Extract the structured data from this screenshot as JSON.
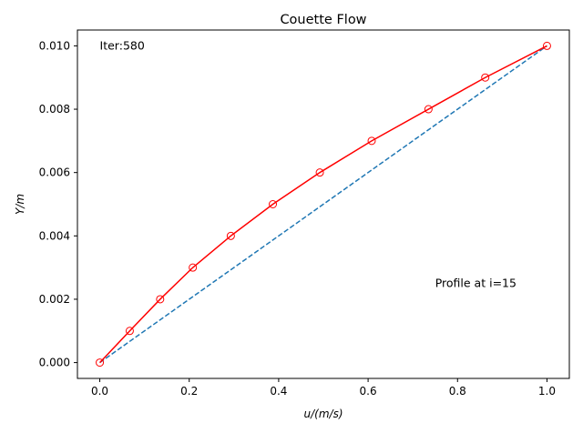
{
  "chart_data": {
    "type": "line",
    "title": "Couette Flow",
    "xlabel": "u/(m/s)",
    "ylabel": "Y/m",
    "xlim": [
      -0.05,
      1.05
    ],
    "ylim": [
      -0.0005,
      0.0105
    ],
    "x_ticks": [
      0.0,
      0.2,
      0.4,
      0.6,
      0.8,
      1.0
    ],
    "x_tick_labels": [
      "0.0",
      "0.2",
      "0.4",
      "0.6",
      "0.8",
      "1.0"
    ],
    "y_ticks": [
      0.0,
      0.002,
      0.004,
      0.006,
      0.008,
      0.01
    ],
    "y_tick_labels": [
      "0.000",
      "0.002",
      "0.004",
      "0.006",
      "0.008",
      "0.010"
    ],
    "grid": false,
    "legend": null,
    "series": [
      {
        "style": "dashed",
        "color": "#1f77b4",
        "x": [
          0.0,
          1.0
        ],
        "y": [
          0.0,
          0.01
        ]
      },
      {
        "style": "solid-with-open-circle-markers",
        "color": "#ff0000",
        "x": [
          0.0,
          0.067,
          0.135,
          0.208,
          0.293,
          0.387,
          0.492,
          0.608,
          0.735,
          0.862,
          1.0
        ],
        "y": [
          0.0,
          0.001,
          0.002,
          0.003,
          0.004,
          0.005,
          0.006,
          0.007,
          0.008,
          0.009,
          0.01
        ]
      }
    ],
    "annotations": [
      {
        "text": "Iter:580",
        "x": 0.0,
        "y": 0.01
      },
      {
        "text": "Profile at i=15",
        "x": 0.75,
        "y": 0.0025
      }
    ]
  }
}
